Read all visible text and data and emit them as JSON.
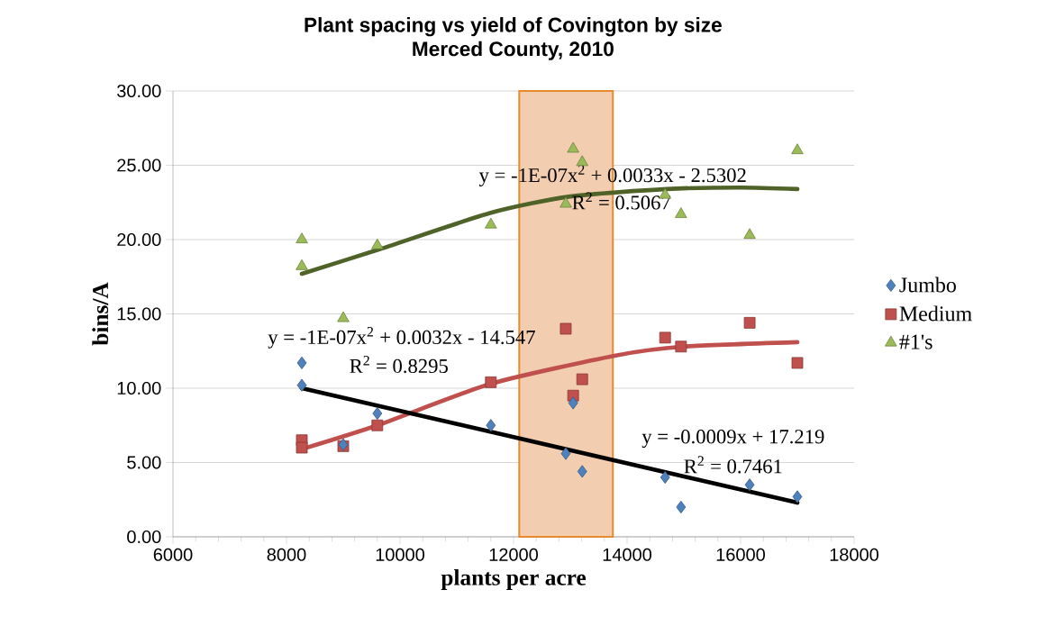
{
  "chart_data": {
    "type": "scatter",
    "title": "Plant spacing vs yield of Covington by size",
    "subtitle": "Merced County, 2010",
    "xlabel": "plants per acre",
    "ylabel": "bins/A",
    "xlim": [
      6000,
      18000
    ],
    "xticks": [
      6000,
      8000,
      10000,
      12000,
      14000,
      16000,
      18000
    ],
    "ylim": [
      0,
      30
    ],
    "yticks": [
      {
        "value": 0,
        "label": "0.00"
      },
      {
        "value": 5,
        "label": "5.00"
      },
      {
        "value": 10,
        "label": "10.00"
      },
      {
        "value": 15,
        "label": "15.00"
      },
      {
        "value": 20,
        "label": "20.00"
      },
      {
        "value": 25,
        "label": "25.00"
      },
      {
        "value": 30,
        "label": "30.00"
      }
    ],
    "grid": "y",
    "legend": "right",
    "bands": [
      {
        "axis": "x",
        "from": 12100,
        "to": 13750,
        "color": "#f2cdb0"
      }
    ],
    "series": [
      {
        "name": "Jumbo",
        "marker": "diamond",
        "color": "#4f81bd",
        "x": [
          8270,
          8270,
          9000,
          9600,
          11600,
          12920,
          13050,
          13210,
          14670,
          14950,
          16160,
          17000
        ],
        "values": [
          11.7,
          10.2,
          6.2,
          8.3,
          7.5,
          5.6,
          9.0,
          4.4,
          4.0,
          2.0,
          3.5,
          2.7
        ]
      },
      {
        "name": "Medium",
        "marker": "square",
        "color": "#c0504d",
        "x": [
          8270,
          8270,
          9000,
          9600,
          11600,
          12920,
          13050,
          13210,
          14670,
          14950,
          16160,
          17000
        ],
        "values": [
          6.5,
          6.0,
          6.1,
          7.5,
          10.4,
          14.0,
          9.5,
          10.6,
          13.4,
          12.8,
          14.4,
          11.7
        ]
      },
      {
        "name": "#1's",
        "marker": "triangle",
        "color": "#9bbb59",
        "x": [
          8270,
          8270,
          9000,
          9600,
          11600,
          12920,
          13050,
          13210,
          14670,
          14950,
          16160,
          17000
        ],
        "values": [
          20.0,
          18.2,
          14.7,
          19.6,
          21.0,
          22.4,
          26.1,
          25.2,
          23.0,
          21.7,
          20.3,
          26.0
        ]
      },
      {
        "type": "line",
        "color": "#000000",
        "x": [
          8270,
          17000
        ],
        "values": [
          10.0,
          2.3
        ]
      },
      {
        "type": "line",
        "color": "#c0504d",
        "x": [
          8270,
          9600,
          11600,
          13800,
          15000,
          17000
        ],
        "values": [
          5.9,
          7.5,
          10.3,
          12.2,
          12.8,
          13.1
        ]
      },
      {
        "type": "line",
        "color": "#4f6228",
        "x": [
          8270,
          9600,
          11600,
          13000,
          14700,
          16000,
          17000
        ],
        "values": [
          17.7,
          19.3,
          21.8,
          22.9,
          23.4,
          23.5,
          23.4
        ]
      }
    ],
    "annotations": [
      "y = -1E-07x$^{2}$ + 0.0033x - 2.5302",
      "R$^{2}$ = 0.5067",
      "y = -1E-07x$^{2}$ + 0.0032x - 14.547",
      "R$^{2}$ = 0.8295",
      "y = -0.0009x + 17.219",
      "R$^{2}$ = 0.7461"
    ]
  }
}
